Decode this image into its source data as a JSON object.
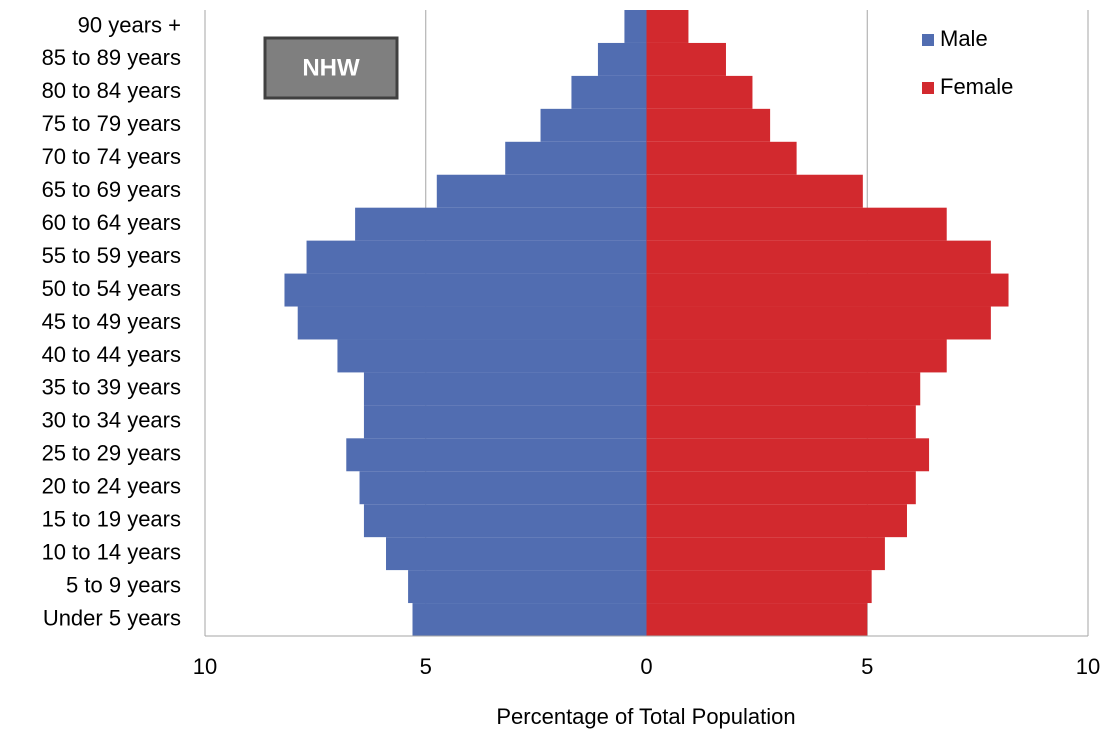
{
  "chart_data": {
    "type": "pyramid",
    "annotation": "NHW",
    "x_label": "Percentage of Total Population",
    "categories": [
      "90 years +",
      "85 to 89 years",
      "80 to 84 years",
      "75 to 79 years",
      "70 to 74 years",
      "65 to 69 years",
      "60 to 64 years",
      "55 to 59 years",
      "50 to 54 years",
      "45 to 49 years",
      "40 to 44 years",
      "35 to 39 years",
      "30 to 34 years",
      "25 to 29 years",
      "20 to 24 years",
      "15 to 19 years",
      "10 to 14 years",
      "5 to 9 years",
      "Under 5 years"
    ],
    "series": [
      {
        "name": "Male",
        "color": "#516db1",
        "values": [
          -0.5,
          -1.1,
          -1.7,
          -2.4,
          -3.2,
          -4.75,
          -6.6,
          -7.7,
          -8.2,
          -7.9,
          -7.0,
          -6.4,
          -6.4,
          -6.8,
          -6.5,
          -6.4,
          -5.9,
          -5.4,
          -5.3
        ]
      },
      {
        "name": "Female",
        "color": "#d2292e",
        "values": [
          0.95,
          1.8,
          2.4,
          2.8,
          3.4,
          4.9,
          6.8,
          7.8,
          8.2,
          7.8,
          6.8,
          6.2,
          6.1,
          6.4,
          6.1,
          5.9,
          5.4,
          5.1,
          5.0
        ]
      }
    ],
    "xlim": [
      -10,
      10
    ],
    "xticks": [
      {
        "value": -10,
        "label": "10"
      },
      {
        "value": -5,
        "label": "5"
      },
      0,
      5,
      10
    ],
    "grid": true,
    "legend": "upper right"
  }
}
